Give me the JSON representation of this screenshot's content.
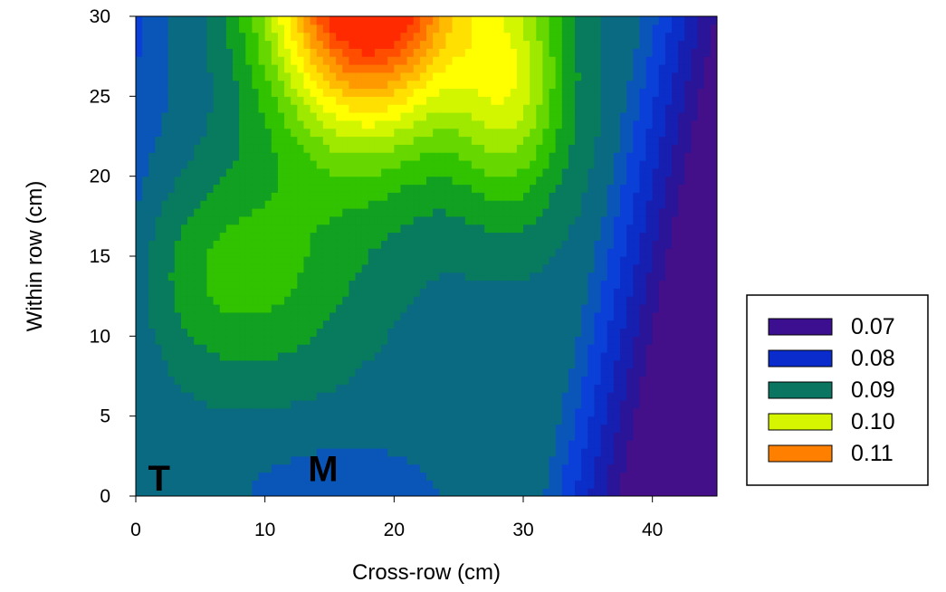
{
  "chart_data": {
    "type": "contour",
    "xlabel": "Cross-row (cm)",
    "ylabel": "Within row (cm)",
    "xlim": [
      0,
      45
    ],
    "ylim": [
      0,
      30
    ],
    "x_ticks": [
      0,
      10,
      20,
      30,
      40
    ],
    "y_ticks": [
      0,
      5,
      10,
      15,
      20,
      25,
      30
    ],
    "grid": false,
    "legend_position": "right",
    "legend": [
      {
        "label": "0.07",
        "color": "#3b0f8f"
      },
      {
        "label": "0.08",
        "color": "#0a2ccc"
      },
      {
        "label": "0.09",
        "color": "#0a7560"
      },
      {
        "label": "0.10",
        "color": "#d6f500"
      },
      {
        "label": "0.11",
        "color": "#ff7f00"
      }
    ],
    "contour_levels": [
      0.07,
      0.075,
      0.08,
      0.085,
      0.09,
      0.095,
      0.1,
      0.105,
      0.11,
      0.115
    ],
    "annotations": [
      {
        "text": "T",
        "x": 1.8,
        "y": 0.8
      },
      {
        "text": "M",
        "x": 14.5,
        "y": 1.4
      }
    ]
  }
}
